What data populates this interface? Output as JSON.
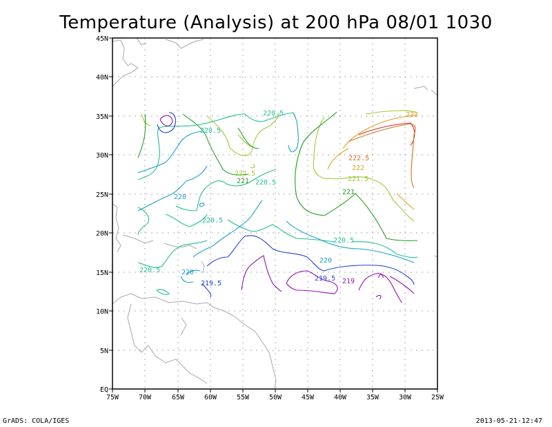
{
  "title": "Temperature (Analysis) at 200 hPa 08/01 1030",
  "footer": {
    "left": "GrADS: COLA/IGES",
    "right": "2013-05-21-12:47"
  },
  "axes": {
    "x_ticks": [
      "75W",
      "70W",
      "65W",
      "60W",
      "55W",
      "50W",
      "45W",
      "40W",
      "35W",
      "30W",
      "25W"
    ],
    "y_ticks": [
      "EQ",
      "5N",
      "10N",
      "15N",
      "20N",
      "25N",
      "30N",
      "35N",
      "40N",
      "45N"
    ]
  },
  "contour_labels": [
    {
      "text": "220.5",
      "color": "#1fbf8f"
    },
    {
      "text": "220.5",
      "color": "#1fbf8f"
    },
    {
      "text": "221.5",
      "color": "#a0c830"
    },
    {
      "text": "221",
      "color": "#20a020"
    },
    {
      "text": "220.5",
      "color": "#1fbf8f"
    },
    {
      "text": "220",
      "color": "#1a9ed0"
    },
    {
      "text": "220.5",
      "color": "#1fbf8f"
    },
    {
      "text": "220.5",
      "color": "#1fbf8f"
    },
    {
      "text": "220",
      "color": "#1a9ed0"
    },
    {
      "text": "219.5",
      "color": "#2040d0"
    },
    {
      "text": "222",
      "color": "#e0a020"
    },
    {
      "text": "222.5",
      "color": "#d07020"
    },
    {
      "text": "222",
      "color": "#e0a020"
    },
    {
      "text": "221.5",
      "color": "#a0c830"
    },
    {
      "text": "221",
      "color": "#20a020"
    },
    {
      "text": "220.5",
      "color": "#1fbf8f"
    },
    {
      "text": "220",
      "color": "#1a9ed0"
    },
    {
      "text": "219.5",
      "color": "#2040d0"
    },
    {
      "text": "219",
      "color": "#9010b0"
    }
  ]
}
